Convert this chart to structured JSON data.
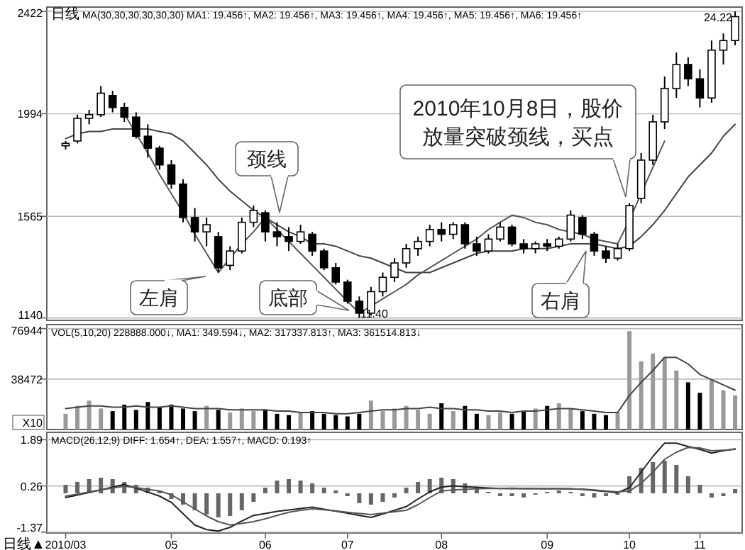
{
  "chart_data": [
    {
      "type": "candlestick",
      "title": "日线 MA(30,30,30,30,30,30) MA1: 19.456↑, MA2: 19.456↑, MA3: 19.456↑, MA4: 19.456↑, MA5: 19.456↑, MA6: 19.456↑",
      "categories": [
        "2010/03",
        null,
        null,
        null,
        null,
        null,
        null,
        null,
        null,
        "05",
        null,
        null,
        null,
        null,
        null,
        null,
        null,
        "06",
        null,
        null,
        null,
        null,
        null,
        null,
        "07",
        null,
        null,
        null,
        null,
        null,
        null,
        null,
        "08",
        null,
        null,
        null,
        null,
        null,
        null,
        null,
        null,
        "09",
        null,
        null,
        null,
        null,
        null,
        null,
        "10",
        null,
        null,
        null,
        null,
        null,
        "11",
        null,
        null,
        null
      ],
      "ohlc": [
        [
          1860,
          1880,
          1845,
          1870
        ],
        [
          1880,
          1990,
          1870,
          1975
        ],
        [
          1975,
          2010,
          1950,
          1990
        ],
        [
          1990,
          2110,
          1980,
          2080
        ],
        [
          2070,
          2090,
          2000,
          2020
        ],
        [
          2020,
          2040,
          1960,
          1980
        ],
        [
          1980,
          2000,
          1890,
          1900
        ],
        [
          1900,
          1950,
          1810,
          1850
        ],
        [
          1850,
          1860,
          1760,
          1780
        ],
        [
          1780,
          1800,
          1680,
          1700
        ],
        [
          1700,
          1720,
          1540,
          1560
        ],
        [
          1560,
          1600,
          1460,
          1500
        ],
        [
          1500,
          1560,
          1440,
          1530
        ],
        [
          1480,
          1500,
          1330,
          1350
        ],
        [
          1360,
          1440,
          1340,
          1420
        ],
        [
          1420,
          1560,
          1410,
          1540
        ],
        [
          1540,
          1610,
          1520,
          1590
        ],
        [
          1580,
          1590,
          1460,
          1500
        ],
        [
          1500,
          1540,
          1440,
          1480
        ],
        [
          1480,
          1520,
          1420,
          1460
        ],
        [
          1460,
          1530,
          1450,
          1500
        ],
        [
          1490,
          1500,
          1400,
          1420
        ],
        [
          1420,
          1430,
          1340,
          1350
        ],
        [
          1350,
          1370,
          1280,
          1290
        ],
        [
          1290,
          1300,
          1200,
          1210
        ],
        [
          1210,
          1230,
          1140,
          1160
        ],
        [
          1160,
          1270,
          1150,
          1250
        ],
        [
          1250,
          1330,
          1230,
          1310
        ],
        [
          1310,
          1390,
          1290,
          1370
        ],
        [
          1370,
          1450,
          1350,
          1430
        ],
        [
          1430,
          1480,
          1400,
          1460
        ],
        [
          1460,
          1530,
          1440,
          1510
        ],
        [
          1510,
          1540,
          1460,
          1490
        ],
        [
          1490,
          1540,
          1470,
          1530
        ],
        [
          1530,
          1540,
          1430,
          1450
        ],
        [
          1450,
          1480,
          1400,
          1420
        ],
        [
          1420,
          1490,
          1410,
          1470
        ],
        [
          1470,
          1540,
          1460,
          1520
        ],
        [
          1520,
          1530,
          1440,
          1450
        ],
        [
          1450,
          1470,
          1410,
          1430
        ],
        [
          1430,
          1460,
          1410,
          1450
        ],
        [
          1450,
          1470,
          1420,
          1440
        ],
        [
          1440,
          1480,
          1430,
          1470
        ],
        [
          1470,
          1590,
          1460,
          1570
        ],
        [
          1560,
          1570,
          1470,
          1490
        ],
        [
          1490,
          1500,
          1400,
          1420
        ],
        [
          1420,
          1440,
          1370,
          1390
        ],
        [
          1390,
          1450,
          1380,
          1430
        ],
        [
          1430,
          1620,
          1420,
          1610
        ],
        [
          1640,
          1830,
          1620,
          1800
        ],
        [
          1800,
          1990,
          1780,
          1960
        ],
        [
          1960,
          2150,
          1930,
          2100
        ],
        [
          2100,
          2250,
          2060,
          2200
        ],
        [
          2200,
          2230,
          2110,
          2140
        ],
        [
          2140,
          2180,
          2020,
          2060
        ],
        [
          2060,
          2300,
          2040,
          2260
        ],
        [
          2260,
          2330,
          2200,
          2300
        ],
        [
          2300,
          2422,
          2280,
          2400
        ]
      ],
      "series": [
        {
          "type": "line",
          "color": "#444444",
          "values": [
            1890,
            1910,
            1920,
            1920,
            1930,
            1930,
            1930,
            1930,
            1920,
            1910,
            1880,
            1830,
            1780,
            1720,
            1670,
            1630,
            1590,
            1560,
            1530,
            1500,
            1480,
            1450,
            1450,
            1440,
            1420,
            1400,
            1390,
            1370,
            1350,
            1330,
            1330,
            1330,
            1350,
            1370,
            1390,
            1410,
            1420,
            1420,
            1420,
            1430,
            1430,
            1430,
            1440,
            1450,
            1450,
            1450,
            1440,
            1430,
            1440,
            1480,
            1530,
            1590,
            1660,
            1730,
            1780,
            1830,
            1900,
            1950
          ]
        },
        {
          "type": "line",
          "color": "#555555",
          "values": [
            null,
            null,
            null,
            null,
            null,
            1994,
            1910,
            1830,
            1740,
            1660,
            1580,
            1490,
            1410,
            1330,
            1390,
            1450,
            1500,
            1560,
            1510,
            1460,
            1410,
            1360,
            1310,
            1260,
            1210,
            1160,
            1190,
            1220,
            1250,
            1280,
            1320,
            1350,
            1380,
            1410,
            1440,
            1470,
            1510,
            1540,
            1570,
            1560,
            1540,
            1530,
            1510,
            1500,
            1490,
            1470,
            1460,
            1450,
            1550,
            1660,
            1770,
            1880,
            null,
            null,
            null,
            null,
            null,
            null
          ]
        }
      ],
      "ylim": [
        1130,
        2440
      ],
      "yticks": [
        1140,
        1565,
        1994,
        2422
      ],
      "grid": "y",
      "tick_labels": "y",
      "annotations": [
        "24.22",
        "11.40",
        "颈线",
        "左肩",
        "底部",
        "右肩",
        "2010年10月8日，股价放量突破颈线，买点"
      ]
    },
    {
      "type": "bar",
      "title": "VOL(5,10,20) 228888.000↓, MA1: 349.594↓, MA2: 317337.813↑, MA3: 361514.813↓",
      "ylabel": "X10",
      "categories": [
        "2010/03",
        null,
        null,
        null,
        null,
        null,
        null,
        null,
        null,
        "05",
        null,
        null,
        null,
        null,
        null,
        null,
        null,
        "06",
        null,
        null,
        null,
        null,
        null,
        null,
        "07",
        null,
        null,
        null,
        null,
        null,
        null,
        null,
        "08",
        null,
        null,
        null,
        null,
        null,
        null,
        null,
        null,
        "09",
        null,
        null,
        null,
        null,
        null,
        null,
        "10",
        null,
        null,
        null,
        null,
        null,
        "11",
        null,
        null,
        null
      ],
      "values": [
        12000,
        18000,
        22000,
        16000,
        14000,
        19000,
        15000,
        21000,
        17000,
        19000,
        16000,
        14000,
        18000,
        15000,
        13000,
        16000,
        14000,
        15000,
        12000,
        11000,
        13000,
        14000,
        12000,
        11000,
        10000,
        12000,
        22000,
        14000,
        16000,
        18000,
        15000,
        12000,
        20000,
        14000,
        18000,
        12000,
        11000,
        13000,
        12000,
        14000,
        16000,
        18000,
        20000,
        16000,
        14000,
        12000,
        11000,
        13000,
        75000,
        52000,
        58000,
        55000,
        45000,
        36000,
        28000,
        38000,
        30000,
        26000
      ],
      "colors": [
        "#999999",
        "#999999",
        "#999999",
        "#999999",
        "#000000",
        "#000000",
        "#000000",
        "#000000",
        "#000000",
        "#000000",
        "#000000",
        "#000000",
        "#999999",
        "#000000",
        "#999999",
        "#999999",
        "#999999",
        "#000000",
        "#000000",
        "#000000",
        "#999999",
        "#000000",
        "#000000",
        "#000000",
        "#000000",
        "#000000",
        "#999999",
        "#999999",
        "#999999",
        "#999999",
        "#999999",
        "#999999",
        "#000000",
        "#999999",
        "#000000",
        "#000000",
        "#999999",
        "#999999",
        "#000000",
        "#000000",
        "#999999",
        "#000000",
        "#999999",
        "#999999",
        "#000000",
        "#000000",
        "#000000",
        "#999999",
        "#999999",
        "#999999",
        "#999999",
        "#999999",
        "#999999",
        "#000000",
        "#000000",
        "#999999",
        "#999999",
        "#999999"
      ],
      "series": [
        {
          "type": "line",
          "color": "#444444",
          "values": [
            16000,
            17000,
            18000,
            18000,
            17000,
            17000,
            18000,
            17000,
            17000,
            18000,
            17000,
            16000,
            16000,
            16000,
            15000,
            15000,
            15000,
            15000,
            14000,
            14000,
            13000,
            13000,
            13000,
            12000,
            12000,
            13000,
            14000,
            15000,
            15000,
            16000,
            16000,
            17000,
            16000,
            16000,
            15000,
            15000,
            14000,
            14000,
            13000,
            14000,
            14000,
            15000,
            16000,
            16000,
            15000,
            14000,
            13000,
            13000,
            26000,
            36000,
            45000,
            55000,
            55000,
            50000,
            42000,
            38000,
            34000,
            30000
          ]
        }
      ],
      "ylim": [
        0,
        80000
      ],
      "yticks": [
        38472,
        76944
      ],
      "grid": "y",
      "tick_labels": "y"
    },
    {
      "type": "bar",
      "title": "MACD(26,12,9) DIFF: 1.654↑, DEA: 1.557↑, MACD: 0.193↑",
      "color": "#666666",
      "categories": [
        "2010/03",
        null,
        null,
        null,
        null,
        null,
        null,
        null,
        null,
        "05",
        null,
        null,
        null,
        null,
        null,
        null,
        null,
        "06",
        null,
        null,
        null,
        null,
        null,
        null,
        "07",
        null,
        null,
        null,
        null,
        null,
        null,
        null,
        "08",
        null,
        null,
        null,
        null,
        null,
        null,
        null,
        null,
        "09",
        null,
        null,
        null,
        null,
        null,
        null,
        "10",
        null,
        null,
        null,
        null,
        null,
        "11",
        null,
        null,
        null
      ],
      "values": [
        0.3,
        0.4,
        0.5,
        0.55,
        0.5,
        0.4,
        0.3,
        0.2,
        0.1,
        -0.2,
        -0.4,
        -0.6,
        -0.75,
        -0.85,
        -0.8,
        -0.6,
        -0.3,
        0.2,
        0.45,
        0.5,
        0.45,
        0.35,
        0.2,
        0.1,
        -0.1,
        -0.35,
        -0.4,
        -0.3,
        -0.15,
        0.2,
        0.4,
        0.5,
        0.55,
        0.5,
        0.35,
        0.2,
        0.05,
        -0.1,
        -0.1,
        -0.15,
        -0.05,
        0.05,
        0.1,
        0.05,
        -0.1,
        -0.15,
        -0.1,
        -0.05,
        0.6,
        0.9,
        1.1,
        1.15,
        1.0,
        0.6,
        0.3,
        -0.15,
        -0.1,
        0.15
      ],
      "series": [
        {
          "type": "line",
          "color": "#222222",
          "values": [
            -0.15,
            -0.06,
            0.03,
            0.12,
            0.22,
            0.31,
            0.18,
            0.04,
            -0.1,
            -0.32,
            -0.72,
            -1.12,
            -1.28,
            -1.33,
            -1.2,
            -0.98,
            -0.78,
            -0.71,
            -0.64,
            -0.59,
            -0.54,
            -0.49,
            -0.56,
            -0.63,
            -0.7,
            -0.78,
            -0.85,
            -0.73,
            -0.6,
            -0.47,
            -0.2,
            0.05,
            0.22,
            0.26,
            0.23,
            0.21,
            0.19,
            0.17,
            0.16,
            0.16,
            0.16,
            0.16,
            0.16,
            0.16,
            0.14,
            0.1,
            0.06,
            0.02,
            0.2,
            0.75,
            1.3,
            1.77,
            1.77,
            1.65,
            1.55,
            1.42,
            1.5,
            1.57
          ]
        },
        {
          "type": "line",
          "color": "#555555",
          "values": [
            -0.1,
            -0.03,
            0.05,
            0.12,
            0.19,
            0.25,
            0.2,
            0.14,
            0.08,
            -0.05,
            -0.3,
            -0.55,
            -0.8,
            -1.0,
            -1.12,
            -1.06,
            -1.0,
            -0.9,
            -0.78,
            -0.67,
            -0.6,
            -0.55,
            -0.58,
            -0.62,
            -0.67,
            -0.71,
            -0.75,
            -0.7,
            -0.65,
            -0.6,
            -0.4,
            -0.15,
            0.08,
            0.12,
            0.14,
            0.16,
            0.17,
            0.17,
            0.18,
            0.17,
            0.17,
            0.16,
            0.16,
            0.15,
            0.15,
            0.12,
            0.08,
            0.05,
            0.08,
            0.35,
            0.75,
            1.2,
            1.45,
            1.62,
            1.6,
            1.5,
            1.52,
            1.55
          ]
        }
      ],
      "ylim": [
        -1.4,
        2.15
      ],
      "yticks": [
        -1.37,
        0.26,
        1.89
      ],
      "grid": "y",
      "annotations": [
        "日线▲"
      ]
    }
  ]
}
